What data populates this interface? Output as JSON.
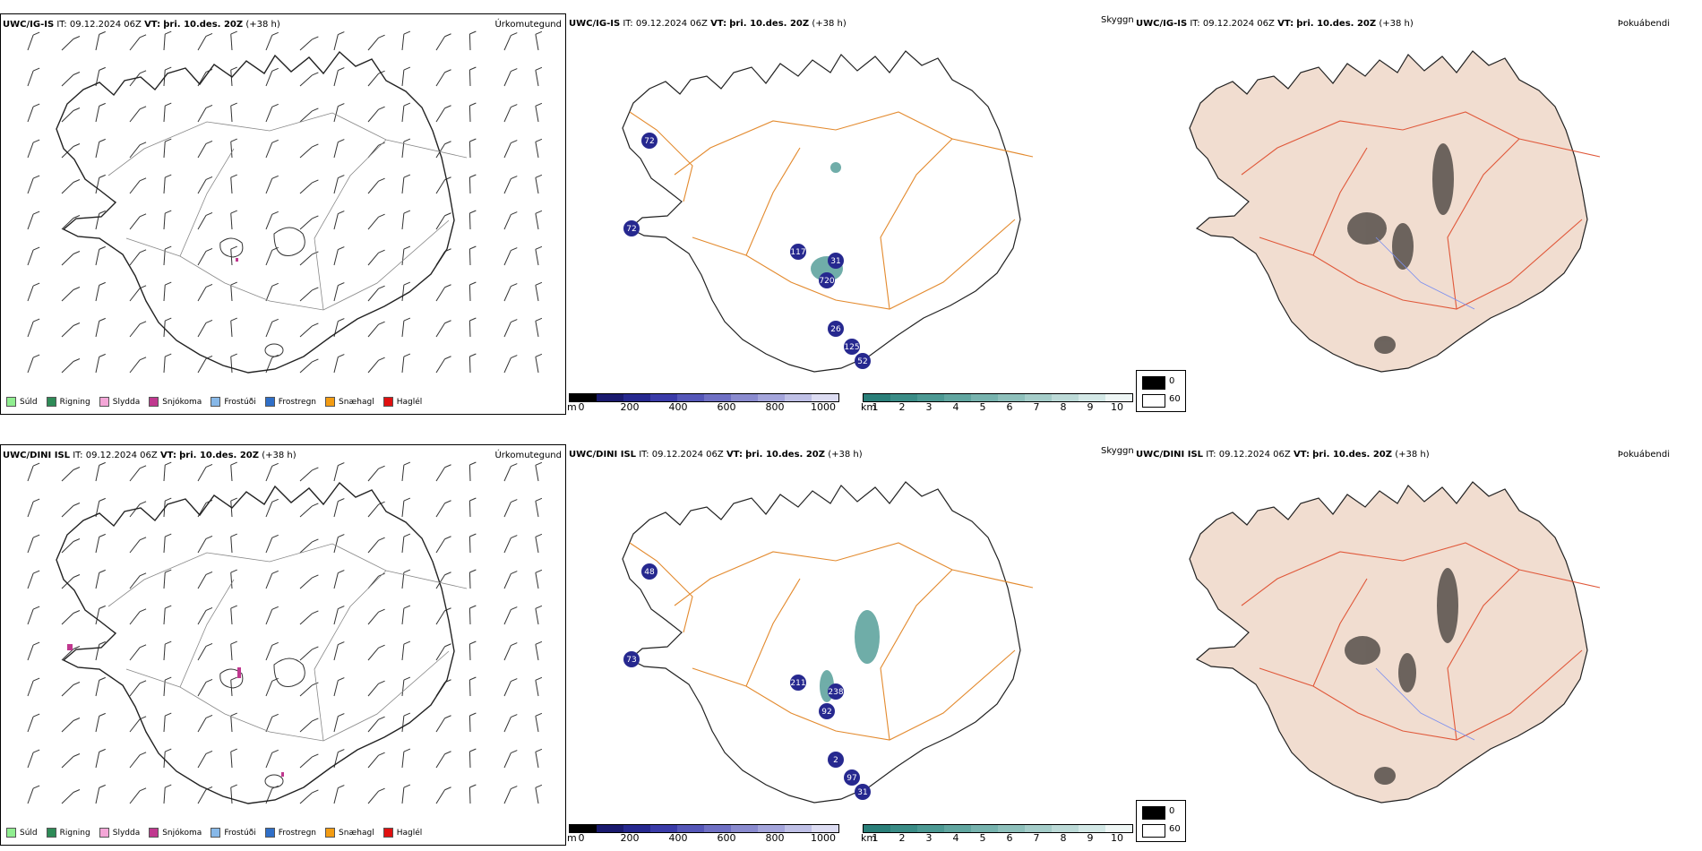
{
  "rows": [
    {
      "left": {
        "model": "UWC/IG-IS",
        "it_label": "IT:",
        "it_value": "09.12.2024 06Z",
        "vt_label": "VT:",
        "vt_value": "þri. 10.des. 20Z",
        "lead": "(+38 h)",
        "corner": "Úrkomutegund"
      },
      "middle": {
        "model": "UWC/IG-IS",
        "it_label": "IT:",
        "it_value": "09.12.2024 06Z",
        "vt_label": "VT:",
        "vt_value": "þri. 10.des. 20Z",
        "lead": "(+38 h)",
        "corner": "Skyggni",
        "labels": [
          "72",
          "72",
          "117",
          "31",
          "720",
          "26",
          "52",
          "125"
        ]
      },
      "right": {
        "model": "UWC/IG-IS",
        "it_label": "IT:",
        "it_value": "09.12.2024 06Z",
        "vt_label": "VT:",
        "vt_value": "þri. 10.des. 20Z",
        "lead": "(+38 h)",
        "corner": "Þokuábendi"
      }
    },
    {
      "left": {
        "model": "UWC/DINI ISL",
        "it_label": "IT:",
        "it_value": "09.12.2024 06Z",
        "vt_label": "VT:",
        "vt_value": "þri. 10.des. 20Z",
        "lead": "(+38 h)",
        "corner": "Úrkomutegund"
      },
      "middle": {
        "model": "UWC/DINI ISL",
        "it_label": "IT:",
        "it_value": "09.12.2024 06Z",
        "vt_label": "VT:",
        "vt_value": "þri. 10.des. 20Z",
        "lead": "(+38 h)",
        "corner": "Skyggni",
        "labels": [
          "48",
          "73",
          "211",
          "238",
          "92",
          "2",
          "31",
          "97"
        ]
      },
      "right": {
        "model": "UWC/DINI ISL",
        "it_label": "IT:",
        "it_value": "09.12.2024 06Z",
        "vt_label": "VT:",
        "vt_value": "þri. 10.des. 20Z",
        "lead": "(+38 h)",
        "corner": "Þokuábendi"
      }
    }
  ],
  "precip_legend": [
    {
      "label": "Súld",
      "color": "#90ee90"
    },
    {
      "label": "Rigning",
      "color": "#2e8b57"
    },
    {
      "label": "Slydda",
      "color": "#f4a6d7"
    },
    {
      "label": "Snjókoma",
      "color": "#c0388f"
    },
    {
      "label": "Frostúði",
      "color": "#87b8e8"
    },
    {
      "label": "Frostregn",
      "color": "#2f6fc8"
    },
    {
      "label": "Snæhagl",
      "color": "#f39c12"
    },
    {
      "label": "Haglél",
      "color": "#e01010"
    }
  ],
  "ceiling_bar": {
    "unit": "m",
    "ticks": [
      "0",
      "200",
      "400",
      "600",
      "800",
      "1000"
    ],
    "colors": [
      "#000000",
      "#1a1a6e",
      "#26288f",
      "#3a3ba8",
      "#5557b8",
      "#6f70c4",
      "#8a8bcf",
      "#a4a5db",
      "#bfc0e6",
      "#dcdcf2"
    ]
  },
  "visibility_bar": {
    "unit": "km",
    "ticks": [
      "1",
      "2",
      "3",
      "4",
      "5",
      "6",
      "7",
      "8",
      "9",
      "10"
    ],
    "colors": [
      "#2a7f79",
      "#3a8c86",
      "#4c9993",
      "#61a6a0",
      "#77b3ae",
      "#8ec0bb",
      "#a5cdc9",
      "#bcdad7",
      "#d3e8e6",
      "#eef6f5"
    ]
  },
  "fog_key": [
    {
      "label": "0",
      "color": "#000000"
    },
    {
      "label": "60",
      "color": "#ffffff"
    }
  ],
  "colors": {
    "roads_orange": "#e38a2e",
    "roads_red": "#e0583a",
    "land_fog": "#f1ddd0",
    "rivers_blue": "#7a8ef0",
    "coast": "#222222"
  }
}
